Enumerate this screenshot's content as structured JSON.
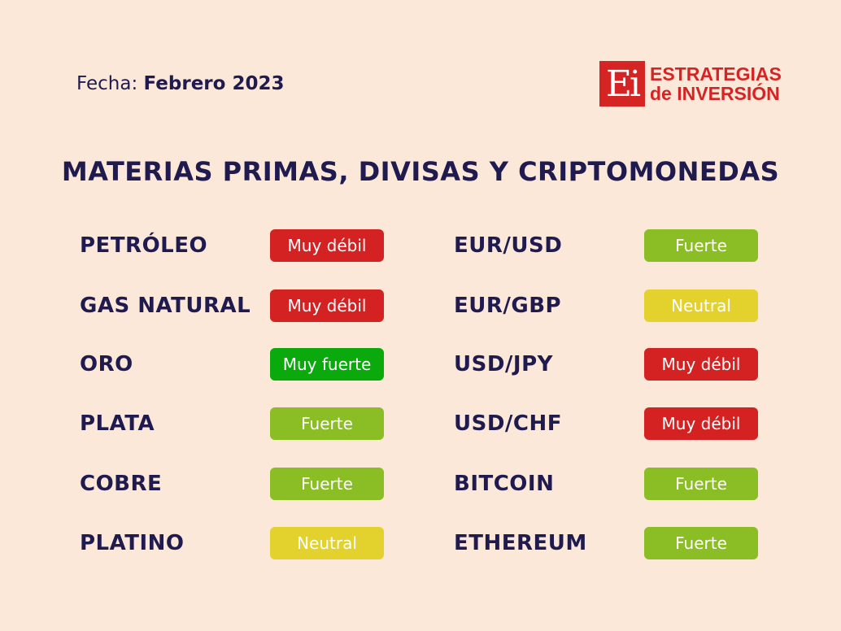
{
  "date_label": "Fecha:",
  "date_value": "Febrero 2023",
  "logo": {
    "mark": "Ei",
    "line1": "ESTRATEGIAS",
    "line2": "de INVERSIÓN"
  },
  "title": "MATERIAS PRIMAS, DIVISAS Y CRIPTOMONEDAS",
  "colors": {
    "Muy débil": "#d42121",
    "Muy fuerte": "#0aa90c",
    "Fuerte": "#8bbd24",
    "Neutral": "#e3d12d"
  },
  "left": [
    {
      "name": "PETRÓLEO",
      "status": "Muy débil"
    },
    {
      "name": "GAS NATURAL",
      "status": "Muy débil"
    },
    {
      "name": "ORO",
      "status": "Muy fuerte"
    },
    {
      "name": "PLATA",
      "status": "Fuerte"
    },
    {
      "name": "COBRE",
      "status": "Fuerte"
    },
    {
      "name": "PLATINO",
      "status": "Neutral"
    }
  ],
  "right": [
    {
      "name": "EUR/USD",
      "status": "Fuerte"
    },
    {
      "name": "EUR/GBP",
      "status": "Neutral"
    },
    {
      "name": "USD/JPY",
      "status": "Muy débil"
    },
    {
      "name": "USD/CHF",
      "status": "Muy débil"
    },
    {
      "name": "BITCOIN",
      "status": "Fuerte"
    },
    {
      "name": "ETHEREUM",
      "status": "Fuerte"
    }
  ]
}
